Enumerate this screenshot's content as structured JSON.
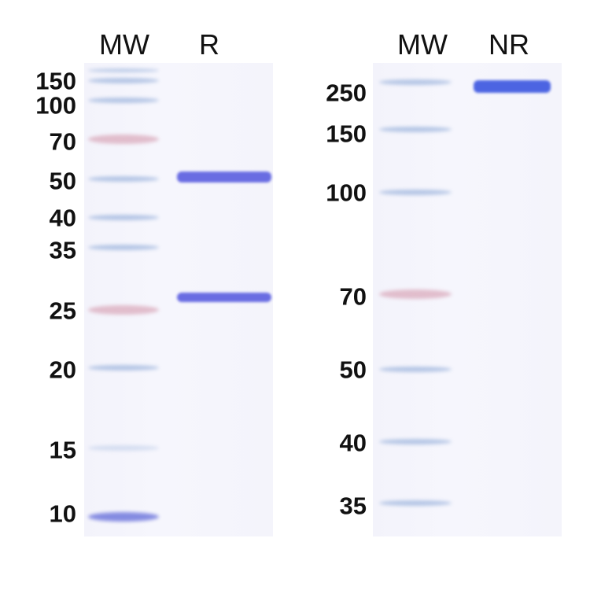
{
  "panels": [
    {
      "lanes": [
        "MW",
        "R"
      ],
      "marker_labels": [
        "150",
        "100",
        "70",
        "50",
        "40",
        "35",
        "25",
        "20",
        "15",
        "10"
      ],
      "sample_bands_kda_approx": [
        55,
        27
      ]
    },
    {
      "lanes": [
        "MW",
        "NR"
      ],
      "marker_labels": [
        "250",
        "150",
        "100",
        "70",
        "50",
        "40",
        "35"
      ],
      "sample_bands_kda_approx": [
        250
      ]
    }
  ],
  "colors": {
    "marker_blue": "#9bb3dc",
    "marker_pink": "#d9a6b8",
    "sample_band": "#5a5ee0",
    "sample_band_strong": "#3a55e0",
    "gel_background": "#f4f4fb"
  }
}
